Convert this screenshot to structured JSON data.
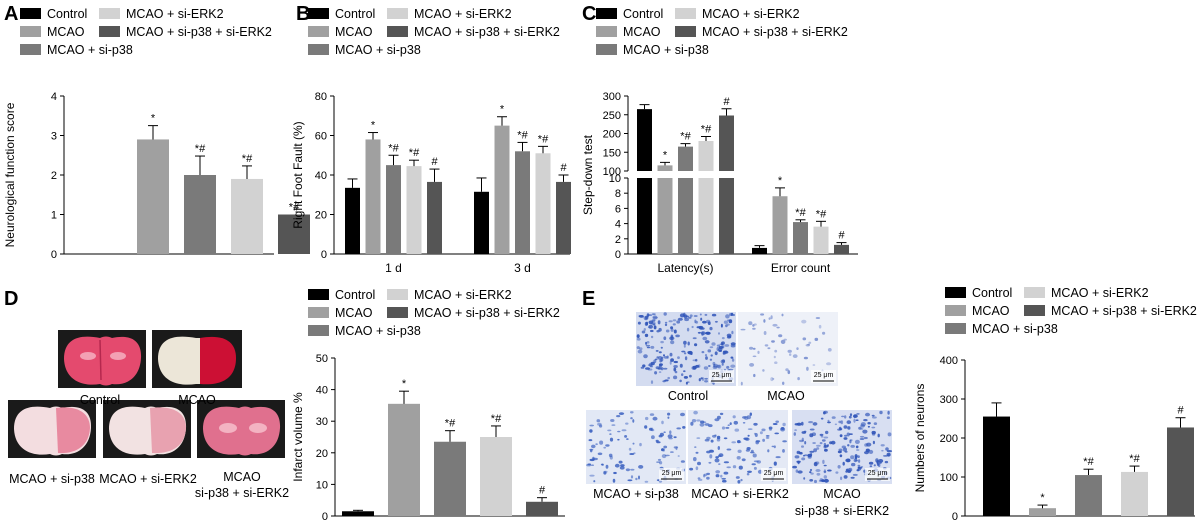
{
  "panel_labels": [
    "A",
    "B",
    "C",
    "D",
    "E"
  ],
  "legend": {
    "control": "Control",
    "mcao": "MCAO",
    "si_p38": "MCAO + si-p38",
    "si_erk2": "MCAO + si-ERK2",
    "si_p38_erk2": "MCAO + si-p38 + si-ERK2"
  },
  "colors": {
    "control": "#000000",
    "mcao": "#a0a0a0",
    "si_p38": "#7a7a7a",
    "si_erk2": "#d2d2d2",
    "si_p38_erk2": "#555555"
  },
  "chart_data": [
    {
      "id": "A",
      "type": "bar",
      "ylabel": "Neurological function score",
      "ylim": [
        0,
        4
      ],
      "yticks": [
        0,
        1,
        2,
        3,
        4
      ],
      "series": [
        {
          "name": "Control",
          "value": 0,
          "err": 0,
          "sig": ""
        },
        {
          "name": "MCAO",
          "value": 2.9,
          "err": 0.35,
          "sig": "*"
        },
        {
          "name": "MCAO + si-p38",
          "value": 2.0,
          "err": 0.48,
          "sig": "*#"
        },
        {
          "name": "MCAO + si-ERK2",
          "value": 1.9,
          "err": 0.33,
          "sig": "*#"
        },
        {
          "name": "MCAO + si-p38 + si-ERK2",
          "value": 1.0,
          "err": 0,
          "sig": "*#"
        }
      ]
    },
    {
      "id": "B",
      "type": "bar",
      "ylabel": "Right Foot Fault (%)",
      "ylim": [
        0,
        80
      ],
      "yticks": [
        0,
        20,
        40,
        60,
        80
      ],
      "categories": [
        "1 d",
        "3 d"
      ],
      "series": [
        {
          "name": "Control",
          "values": [
            33.5,
            31.5
          ],
          "err": [
            4.5,
            7
          ],
          "sig": [
            "",
            ""
          ]
        },
        {
          "name": "MCAO",
          "values": [
            58,
            65
          ],
          "err": [
            3.5,
            4.5
          ],
          "sig": [
            "*",
            "*"
          ]
        },
        {
          "name": "MCAO + si-p38",
          "values": [
            45,
            52
          ],
          "err": [
            5,
            4.5
          ],
          "sig": [
            "*#",
            "*#"
          ]
        },
        {
          "name": "MCAO + si-ERK2",
          "values": [
            44.5,
            51
          ],
          "err": [
            3,
            3.5
          ],
          "sig": [
            "*#",
            "*#"
          ]
        },
        {
          "name": "MCAO + si-p38 + si-ERK2",
          "values": [
            36.5,
            36.5
          ],
          "err": [
            6.5,
            3.5
          ],
          "sig": [
            "#",
            "#"
          ]
        }
      ]
    },
    {
      "id": "C",
      "type": "bar",
      "ylabel": "Step-down test",
      "ylim": [
        0,
        300
      ],
      "yticks": [
        0,
        2,
        4,
        6,
        8,
        10,
        100,
        150,
        200,
        250,
        300
      ],
      "axis_break": [
        10,
        100
      ],
      "categories": [
        "Latency(s)",
        "Error count"
      ],
      "series": [
        {
          "name": "Control",
          "values": [
            265,
            0.8
          ],
          "err": [
            12,
            0.3
          ],
          "sig": [
            "",
            ""
          ]
        },
        {
          "name": "MCAO",
          "values": [
            115,
            7.6
          ],
          "err": [
            8,
            1.1
          ],
          "sig": [
            "*",
            "*"
          ]
        },
        {
          "name": "MCAO + si-p38",
          "values": [
            165,
            4.2
          ],
          "err": [
            8,
            0.3
          ],
          "sig": [
            "*#",
            "*#"
          ]
        },
        {
          "name": "MCAO + si-ERK2",
          "values": [
            180,
            3.6
          ],
          "err": [
            12,
            0.7
          ],
          "sig": [
            "*#",
            "*#"
          ]
        },
        {
          "name": "MCAO + si-p38 + si-ERK2",
          "values": [
            248,
            1.2
          ],
          "err": [
            18,
            0.3
          ],
          "sig": [
            "#",
            "#"
          ]
        }
      ]
    },
    {
      "id": "D",
      "type": "bar",
      "ylabel": "Infarct volume %",
      "ylim": [
        0,
        50
      ],
      "yticks": [
        0,
        10,
        20,
        30,
        40,
        50
      ],
      "series": [
        {
          "name": "Control",
          "value": 1.5,
          "err": 0.3,
          "sig": ""
        },
        {
          "name": "MCAO",
          "value": 35.5,
          "err": 4,
          "sig": "*"
        },
        {
          "name": "MCAO + si-p38",
          "value": 23.5,
          "err": 3.5,
          "sig": "*#"
        },
        {
          "name": "MCAO + si-ERK2",
          "value": 25,
          "err": 3.5,
          "sig": "*#"
        },
        {
          "name": "MCAO + si-p38 + si-ERK2",
          "value": 4.5,
          "err": 1.3,
          "sig": "#"
        }
      ]
    },
    {
      "id": "E",
      "type": "bar",
      "ylabel": "Numbers of neurons",
      "ylim": [
        0,
        400
      ],
      "yticks": [
        0,
        100,
        200,
        300,
        400
      ],
      "series": [
        {
          "name": "Control",
          "value": 255,
          "err": 35,
          "sig": ""
        },
        {
          "name": "MCAO",
          "value": 20,
          "err": 8,
          "sig": "*"
        },
        {
          "name": "MCAO + si-p38",
          "value": 105,
          "err": 15,
          "sig": "*#"
        },
        {
          "name": "MCAO + si-ERK2",
          "value": 113,
          "err": 15,
          "sig": "*#"
        },
        {
          "name": "MCAO + si-p38 + si-ERK2",
          "value": 227,
          "err": 25,
          "sig": "#"
        }
      ]
    }
  ],
  "panel_d_images": {
    "captions": [
      "Control",
      "MCAO",
      "MCAO + si-p38",
      "MCAO + si-ERK2",
      "MCAO",
      "si-p38 + si-ERK2"
    ]
  },
  "panel_e_images": {
    "captions": [
      "Control",
      "MCAO",
      "MCAO + si-p38",
      "MCAO + si-ERK2",
      "MCAO",
      "si-p38 + si-ERK2"
    ],
    "scale_label": "25 μm"
  }
}
